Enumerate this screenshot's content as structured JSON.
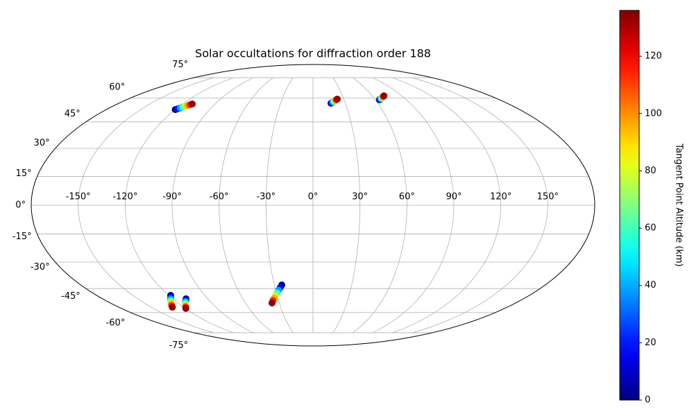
{
  "chart_data": {
    "type": "scatter",
    "projection": "mollweide",
    "title": "Solar occultations for diffraction order 188",
    "x": [
      -120,
      -118.7,
      -117.4,
      -116.1,
      -114.9,
      -113.6,
      -112.3,
      -111,
      16.7,
      17.7,
      18.7,
      19.7,
      20.6,
      21.6,
      22.6,
      23.6,
      64.2,
      65.3,
      66.4,
      67.5,
      68.7,
      69.8,
      70.9,
      72,
      -118.4,
      -120.1,
      -121.8,
      -123.5,
      -125.3,
      -127,
      -128.7,
      -130.4,
      -108.6,
      -110.2,
      -111.7,
      -113.3,
      -114.8,
      -116.4,
      -117.9,
      -119.5,
      -24.2,
      -25.9,
      -27.7,
      -29.4,
      -31.2,
      -32.9,
      -34.7,
      -36.4
    ],
    "y": [
      52.5,
      53,
      53.5,
      54,
      54.5,
      55,
      55.5,
      56,
      56.5,
      56.9,
      57.3,
      57.7,
      58.0,
      58.4,
      58.8,
      59.2,
      58.8,
      59.2,
      59.5,
      59.9,
      60.3,
      60.7,
      61.0,
      61.4,
      -49.1,
      -50.2,
      -51.2,
      -52.3,
      -53.3,
      -54.4,
      -55.4,
      -56.5,
      -51.2,
      -52.1,
      -52.9,
      -53.8,
      -54.7,
      -55.6,
      -56.4,
      -57.3,
      -42.9,
      -44.5,
      -46.0,
      -47.6,
      -49.1,
      -50.7,
      -52.2,
      -53.8
    ],
    "c": [
      0,
      19,
      38,
      57,
      76,
      95,
      114,
      133,
      0,
      19,
      38,
      57,
      76,
      95,
      114,
      133,
      0,
      19,
      38,
      57,
      76,
      95,
      114,
      133,
      0,
      19,
      38,
      57,
      76,
      95,
      114,
      133,
      0,
      19,
      38,
      57,
      76,
      95,
      114,
      133,
      0,
      19,
      38,
      57,
      76,
      95,
      114,
      133
    ],
    "colormap": "jet",
    "clim": [
      0,
      136
    ],
    "colorbar": {
      "label": "Tangent Point Altitude (km)",
      "ticks": [
        0,
        20,
        40,
        60,
        80,
        100,
        120
      ]
    },
    "xlim": [
      -180,
      180
    ],
    "ylim": [
      -90,
      90
    ],
    "xticks": [
      {
        "value": -150,
        "label": "-150°"
      },
      {
        "value": -120,
        "label": "-120°"
      },
      {
        "value": -90,
        "label": "-90°"
      },
      {
        "value": -60,
        "label": "-60°"
      },
      {
        "value": -30,
        "label": "-30°"
      },
      {
        "value": 0,
        "label": "0°"
      },
      {
        "value": 30,
        "label": "30°"
      },
      {
        "value": 60,
        "label": "60°"
      },
      {
        "value": 90,
        "label": "90°"
      },
      {
        "value": 120,
        "label": "120°"
      },
      {
        "value": 150,
        "label": "150°"
      }
    ],
    "yticks": [
      {
        "value": -75,
        "label": "-75°"
      },
      {
        "value": -60,
        "label": "-60°"
      },
      {
        "value": -45,
        "label": "-45°"
      },
      {
        "value": -30,
        "label": "-30°"
      },
      {
        "value": -15,
        "label": "-15°"
      },
      {
        "value": 0,
        "label": "0°"
      },
      {
        "value": 15,
        "label": "15°"
      },
      {
        "value": 30,
        "label": "30°"
      },
      {
        "value": 45,
        "label": "45°"
      },
      {
        "value": 60,
        "label": "60°"
      },
      {
        "value": 75,
        "label": "75°"
      }
    ],
    "grid": true
  }
}
